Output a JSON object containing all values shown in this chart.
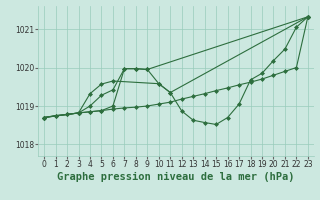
{
  "background_color": "#cce8e0",
  "plot_bg_color": "#cce8e0",
  "grid_color": "#99ccbb",
  "line_color": "#2d6e3e",
  "marker_color": "#2d6e3e",
  "title": "Graphe pression niveau de la mer (hPa)",
  "xlim": [
    -0.5,
    23.5
  ],
  "ylim": [
    1017.7,
    1021.6
  ],
  "yticks": [
    1018,
    1019,
    1020,
    1021
  ],
  "xticks": [
    0,
    1,
    2,
    3,
    4,
    5,
    6,
    7,
    8,
    9,
    10,
    11,
    12,
    13,
    14,
    15,
    16,
    17,
    18,
    19,
    20,
    21,
    22,
    23
  ],
  "series_data": {
    "s1_x": [
      0,
      1,
      2,
      3,
      4,
      5,
      6,
      7,
      8,
      9,
      10,
      11,
      12,
      13,
      14,
      15,
      16,
      17,
      18,
      19,
      20,
      21,
      22,
      23
    ],
    "s1_y": [
      1018.7,
      1018.75,
      1018.78,
      1018.82,
      1018.85,
      1018.88,
      1018.92,
      1018.95,
      1018.97,
      1019.0,
      1019.05,
      1019.1,
      1019.18,
      1019.25,
      1019.32,
      1019.4,
      1019.47,
      1019.55,
      1019.62,
      1019.7,
      1019.8,
      1019.9,
      1020.0,
      1021.32
    ],
    "s2_x": [
      0,
      1,
      2,
      3,
      4,
      5,
      6,
      7,
      8,
      9,
      10,
      11,
      12,
      13,
      14,
      15,
      16,
      17,
      18,
      19,
      20,
      21,
      22,
      23
    ],
    "s2_y": [
      1018.7,
      1018.75,
      1018.78,
      1018.82,
      1018.85,
      1018.88,
      1019.0,
      1019.97,
      1019.97,
      1019.95,
      1019.58,
      1019.35,
      1018.87,
      1018.63,
      1018.57,
      1018.52,
      1018.7,
      1019.05,
      1019.68,
      1019.85,
      1020.18,
      1020.48,
      1021.05,
      1021.32
    ],
    "s3_x": [
      0,
      3,
      4,
      5,
      6,
      7,
      8,
      9,
      23
    ],
    "s3_y": [
      1018.7,
      1018.82,
      1019.0,
      1019.28,
      1019.42,
      1019.97,
      1019.97,
      1019.95,
      1021.32
    ],
    "s4_x": [
      0,
      3,
      4,
      5,
      6,
      10,
      11,
      23
    ],
    "s4_y": [
      1018.7,
      1018.82,
      1019.32,
      1019.57,
      1019.65,
      1019.58,
      1019.35,
      1021.32
    ]
  },
  "title_fontsize": 7.5,
  "tick_fontsize": 5.5
}
